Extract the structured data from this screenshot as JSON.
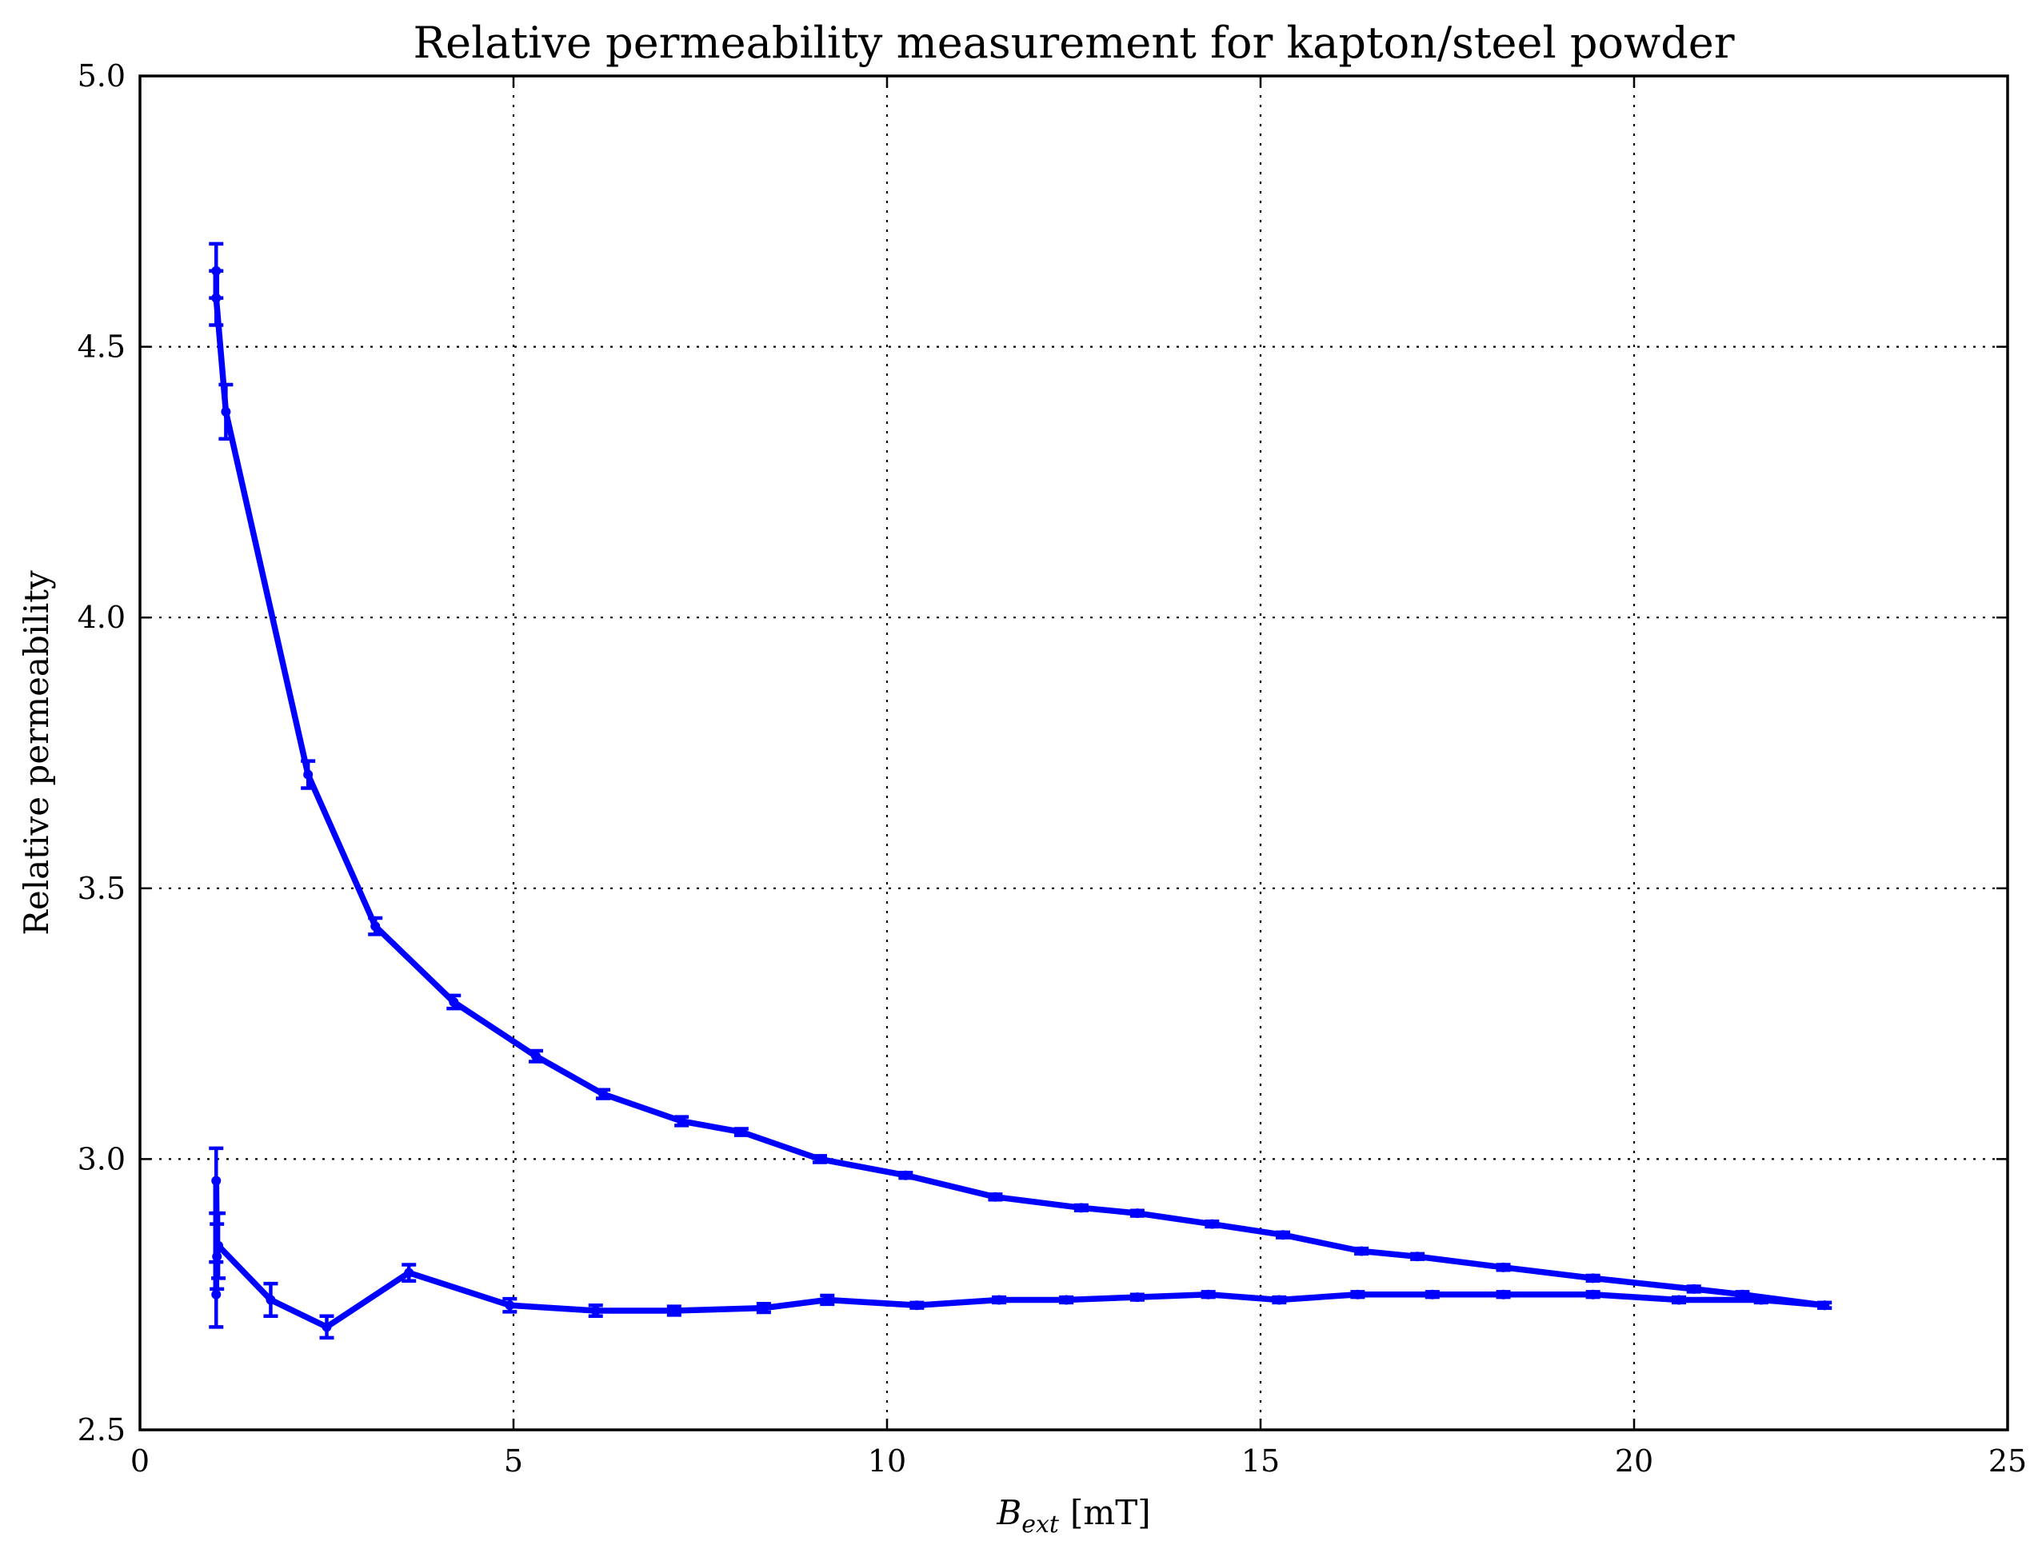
{
  "chart_data": {
    "type": "line",
    "title": "Relative permeability measurement for kapton/steel powder",
    "xlabel_main": "B",
    "xlabel_sub": "ext",
    "xlabel_unit": "[mT]",
    "ylabel": "Relative permeability",
    "xlim": [
      0,
      25
    ],
    "ylim": [
      2.5,
      5.0
    ],
    "xticks": [
      "0",
      "5",
      "10",
      "15",
      "20",
      "25"
    ],
    "yticks": [
      "2.5",
      "3.0",
      "3.5",
      "4.0",
      "4.5",
      "5.0"
    ],
    "grid": true,
    "legend": false,
    "color": "#0000ff",
    "series": [
      {
        "x": [
          22.55,
          21.7,
          20.6,
          19.45,
          18.25,
          17.3,
          16.3,
          15.25,
          14.3,
          13.35,
          12.4,
          11.5,
          10.4,
          9.2,
          8.35,
          7.15,
          6.1,
          4.95,
          3.6,
          2.5,
          1.75,
          1.05,
          1.03,
          1.02,
          1.02
        ],
        "y": [
          2.73,
          2.74,
          2.74,
          2.75,
          2.75,
          2.75,
          2.75,
          2.74,
          2.75,
          2.745,
          2.74,
          2.74,
          2.73,
          2.74,
          2.725,
          2.72,
          2.72,
          2.73,
          2.79,
          2.69,
          2.74,
          2.84,
          2.82,
          2.96,
          2.75
        ],
        "err": [
          0.005,
          0.005,
          0.005,
          0.005,
          0.005,
          0.005,
          0.005,
          0.005,
          0.005,
          0.005,
          0.005,
          0.005,
          0.005,
          0.008,
          0.008,
          0.008,
          0.01,
          0.012,
          0.015,
          0.02,
          0.03,
          0.06,
          0.06,
          0.06,
          0.06
        ]
      },
      {
        "x": [
          1.02,
          1.02,
          1.15,
          2.25,
          3.15,
          4.2,
          5.3,
          6.2,
          7.25,
          8.05,
          9.1,
          10.25,
          11.45,
          12.6,
          13.35,
          14.35,
          15.3,
          16.35,
          17.1,
          18.25,
          19.45,
          20.8,
          21.45,
          22.55
        ],
        "y": [
          4.64,
          4.59,
          4.38,
          3.71,
          3.43,
          3.29,
          3.19,
          3.12,
          3.07,
          3.05,
          3.0,
          2.97,
          2.93,
          2.91,
          2.9,
          2.88,
          2.86,
          2.83,
          2.82,
          2.8,
          2.78,
          2.76,
          2.75,
          2.73
        ],
        "err": [
          0.05,
          0.05,
          0.05,
          0.025,
          0.015,
          0.012,
          0.01,
          0.008,
          0.008,
          0.006,
          0.006,
          0.005,
          0.005,
          0.005,
          0.005,
          0.005,
          0.005,
          0.005,
          0.005,
          0.005,
          0.005,
          0.005,
          0.005,
          0.005
        ]
      }
    ]
  }
}
